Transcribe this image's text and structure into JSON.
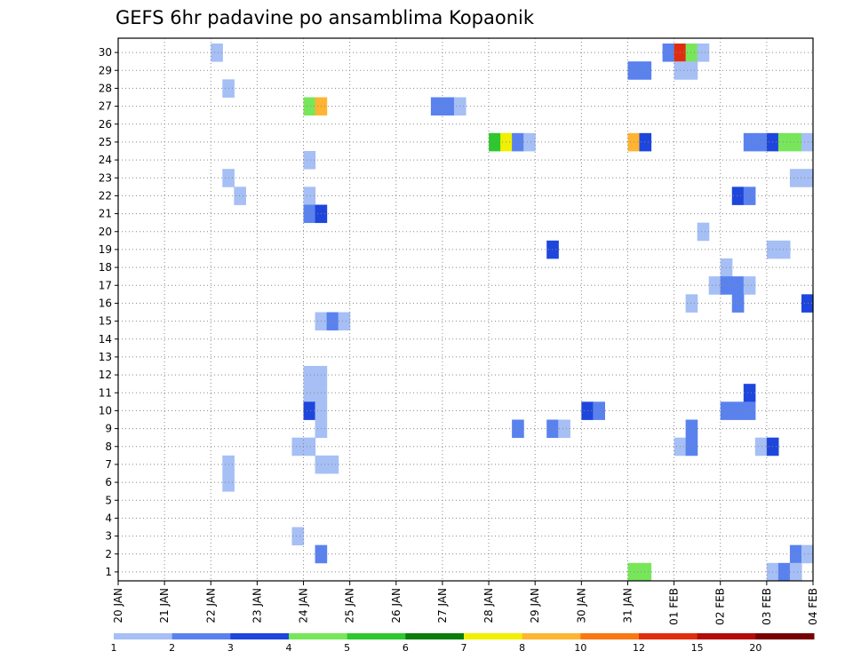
{
  "chart_data": {
    "type": "heatmap",
    "title": "GEFS 6hr padavine po ansamblima Kopaonik",
    "y_categories": [
      "1",
      "2",
      "3",
      "4",
      "5",
      "6",
      "7",
      "8",
      "9",
      "10",
      "11",
      "12",
      "13",
      "14",
      "15",
      "16",
      "17",
      "18",
      "19",
      "20",
      "21",
      "22",
      "23",
      "24",
      "25",
      "26",
      "27",
      "28",
      "29",
      "30"
    ],
    "x_tick_labels": [
      "20 JAN",
      "21 JAN",
      "22 JAN",
      "23 JAN",
      "24 JAN",
      "25 JAN",
      "26 JAN",
      "27 JAN",
      "28 JAN",
      "29 JAN",
      "30 JAN",
      "31 JAN",
      "01 FEB",
      "02 FEB",
      "03 FEB",
      "04 FEB"
    ],
    "time_step_hours": 6,
    "grid": "dotted",
    "colorbar": {
      "levels": [
        "1",
        "2",
        "3",
        "4",
        "5",
        "6",
        "7",
        "8",
        "10",
        "12",
        "15",
        "20"
      ],
      "colors": [
        "#a6bff5",
        "#5a82ee",
        "#1e46dc",
        "#78e65a",
        "#2dc82d",
        "#0a7d0a",
        "#f0f000",
        "#ffb432",
        "#fa7814",
        "#e12d0f",
        "#b40a0a",
        "#780000"
      ]
    },
    "cells": [
      {
        "member": 30,
        "day": 2.0,
        "cls": 1
      },
      {
        "member": 28,
        "day": 2.25,
        "cls": 1
      },
      {
        "member": 23,
        "day": 2.25,
        "cls": 1
      },
      {
        "member": 22,
        "day": 2.5,
        "cls": 1
      },
      {
        "member": 7,
        "day": 2.25,
        "cls": 1
      },
      {
        "member": 6,
        "day": 2.25,
        "cls": 1
      },
      {
        "member": 27,
        "day": 4.0,
        "cls": 4
      },
      {
        "member": 27,
        "day": 4.25,
        "cls": 8
      },
      {
        "member": 24,
        "day": 4.0,
        "cls": 1
      },
      {
        "member": 22,
        "day": 4.0,
        "cls": 1
      },
      {
        "member": 21,
        "day": 4.0,
        "cls": 2
      },
      {
        "member": 21,
        "day": 4.25,
        "cls": 3
      },
      {
        "member": 15,
        "day": 4.25,
        "cls": 1
      },
      {
        "member": 15,
        "day": 4.5,
        "cls": 2
      },
      {
        "member": 15,
        "day": 4.75,
        "cls": 1
      },
      {
        "member": 12,
        "day": 4.0,
        "cls": 1
      },
      {
        "member": 12,
        "day": 4.25,
        "cls": 1
      },
      {
        "member": 11,
        "day": 4.0,
        "cls": 1
      },
      {
        "member": 11,
        "day": 4.25,
        "cls": 1
      },
      {
        "member": 10,
        "day": 4.0,
        "cls": 3
      },
      {
        "member": 10,
        "day": 4.25,
        "cls": 1
      },
      {
        "member": 9,
        "day": 4.25,
        "cls": 1
      },
      {
        "member": 8,
        "day": 3.75,
        "cls": 1
      },
      {
        "member": 8,
        "day": 4.0,
        "cls": 1
      },
      {
        "member": 7,
        "day": 4.25,
        "cls": 1
      },
      {
        "member": 7,
        "day": 4.5,
        "cls": 1
      },
      {
        "member": 3,
        "day": 3.75,
        "cls": 1
      },
      {
        "member": 2,
        "day": 4.25,
        "cls": 2
      },
      {
        "member": 27,
        "day": 6.75,
        "cls": 2
      },
      {
        "member": 27,
        "day": 7.0,
        "cls": 2
      },
      {
        "member": 27,
        "day": 7.25,
        "cls": 1
      },
      {
        "member": 25,
        "day": 8.0,
        "cls": 5
      },
      {
        "member": 25,
        "day": 8.25,
        "cls": 7
      },
      {
        "member": 25,
        "day": 8.5,
        "cls": 2
      },
      {
        "member": 25,
        "day": 8.75,
        "cls": 1
      },
      {
        "member": 19,
        "day": 9.25,
        "cls": 3
      },
      {
        "member": 9,
        "day": 8.5,
        "cls": 2
      },
      {
        "member": 9,
        "day": 9.25,
        "cls": 2
      },
      {
        "member": 9,
        "day": 9.5,
        "cls": 1
      },
      {
        "member": 10,
        "day": 10.0,
        "cls": 3
      },
      {
        "member": 10,
        "day": 10.25,
        "cls": 2
      },
      {
        "member": 30,
        "day": 11.75,
        "cls": 2
      },
      {
        "member": 30,
        "day": 12.0,
        "cls": 10
      },
      {
        "member": 30,
        "day": 12.25,
        "cls": 4
      },
      {
        "member": 30,
        "day": 12.5,
        "cls": 1
      },
      {
        "member": 29,
        "day": 11.0,
        "cls": 2
      },
      {
        "member": 29,
        "day": 11.25,
        "cls": 2
      },
      {
        "member": 29,
        "day": 12.0,
        "cls": 1
      },
      {
        "member": 29,
        "day": 12.25,
        "cls": 1
      },
      {
        "member": 25,
        "day": 11.0,
        "cls": 8
      },
      {
        "member": 25,
        "day": 11.25,
        "cls": 3
      },
      {
        "member": 1,
        "day": 11.0,
        "cls": 4
      },
      {
        "member": 1,
        "day": 11.25,
        "cls": 4
      },
      {
        "member": 8,
        "day": 12.0,
        "cls": 1
      },
      {
        "member": 8,
        "day": 12.25,
        "cls": 2
      },
      {
        "member": 9,
        "day": 12.25,
        "cls": 2
      },
      {
        "member": 16,
        "day": 12.25,
        "cls": 1
      },
      {
        "member": 20,
        "day": 12.5,
        "cls": 1
      },
      {
        "member": 18,
        "day": 13.0,
        "cls": 1
      },
      {
        "member": 17,
        "day": 12.75,
        "cls": 1
      },
      {
        "member": 17,
        "day": 13.0,
        "cls": 2
      },
      {
        "member": 17,
        "day": 13.25,
        "cls": 2
      },
      {
        "member": 17,
        "day": 13.5,
        "cls": 1
      },
      {
        "member": 16,
        "day": 13.25,
        "cls": 2
      },
      {
        "member": 22,
        "day": 13.25,
        "cls": 3
      },
      {
        "member": 22,
        "day": 13.5,
        "cls": 2
      },
      {
        "member": 11,
        "day": 13.5,
        "cls": 3
      },
      {
        "member": 10,
        "day": 13.0,
        "cls": 2
      },
      {
        "member": 10,
        "day": 13.25,
        "cls": 2
      },
      {
        "member": 10,
        "day": 13.5,
        "cls": 2
      },
      {
        "member": 25,
        "day": 13.5,
        "cls": 2
      },
      {
        "member": 25,
        "day": 13.75,
        "cls": 2
      },
      {
        "member": 25,
        "day": 14.0,
        "cls": 3
      },
      {
        "member": 25,
        "day": 14.25,
        "cls": 4
      },
      {
        "member": 25,
        "day": 14.5,
        "cls": 4
      },
      {
        "member": 25,
        "day": 14.75,
        "cls": 1
      },
      {
        "member": 23,
        "day": 14.5,
        "cls": 1
      },
      {
        "member": 23,
        "day": 14.75,
        "cls": 1
      },
      {
        "member": 19,
        "day": 14.0,
        "cls": 1
      },
      {
        "member": 19,
        "day": 14.25,
        "cls": 1
      },
      {
        "member": 16,
        "day": 14.75,
        "cls": 3
      },
      {
        "member": 8,
        "day": 13.75,
        "cls": 1
      },
      {
        "member": 8,
        "day": 14.0,
        "cls": 3
      },
      {
        "member": 2,
        "day": 14.5,
        "cls": 2
      },
      {
        "member": 2,
        "day": 14.75,
        "cls": 1
      },
      {
        "member": 1,
        "day": 14.0,
        "cls": 1
      },
      {
        "member": 1,
        "day": 14.25,
        "cls": 2
      },
      {
        "member": 1,
        "day": 14.5,
        "cls": 1
      }
    ]
  }
}
